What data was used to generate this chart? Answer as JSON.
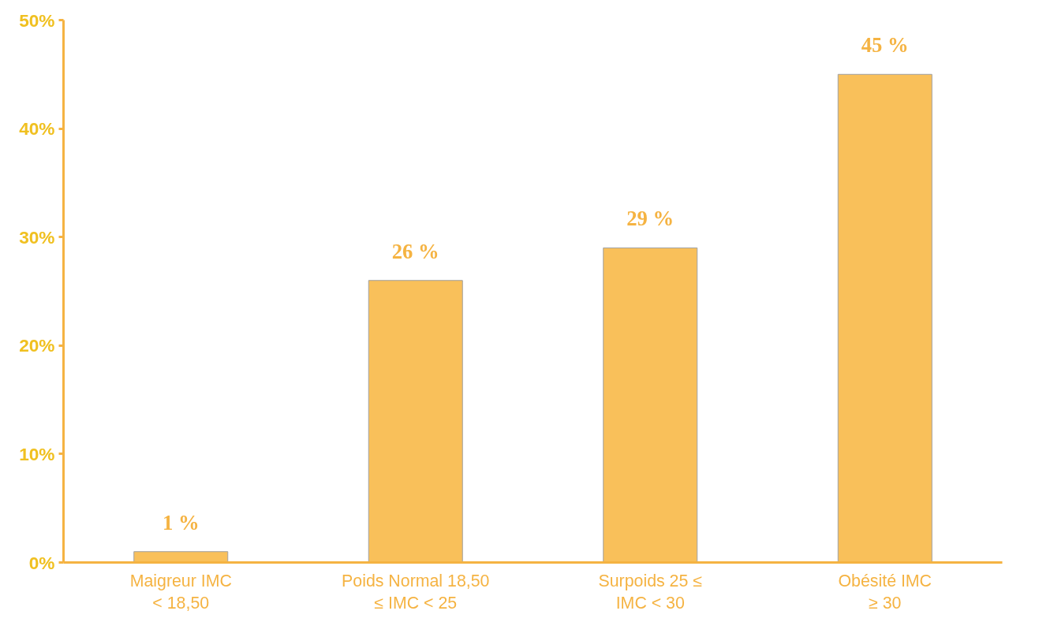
{
  "chart_data": {
    "type": "bar",
    "categories": [
      "Maigreur IMC\n< 18,50",
      "Poids Normal 18,50\n≤ IMC < 25",
      "Surpoids 25 ≤\nIMC < 30",
      "Obésité IMC\n≥ 30"
    ],
    "values": [
      1,
      26,
      29,
      45
    ],
    "value_labels": [
      "1 %",
      "26 %",
      "29 %",
      "45 %"
    ],
    "color": "#f9c05a",
    "ylim": [
      0,
      50
    ],
    "yticks": [
      {
        "value": 0,
        "label": "0%"
      },
      {
        "value": 10,
        "label": "10%"
      },
      {
        "value": 20,
        "label": "20%"
      },
      {
        "value": 30,
        "label": "30%"
      },
      {
        "value": 40,
        "label": "40%"
      },
      {
        "value": 50,
        "label": "50%"
      }
    ],
    "grid": false
  }
}
